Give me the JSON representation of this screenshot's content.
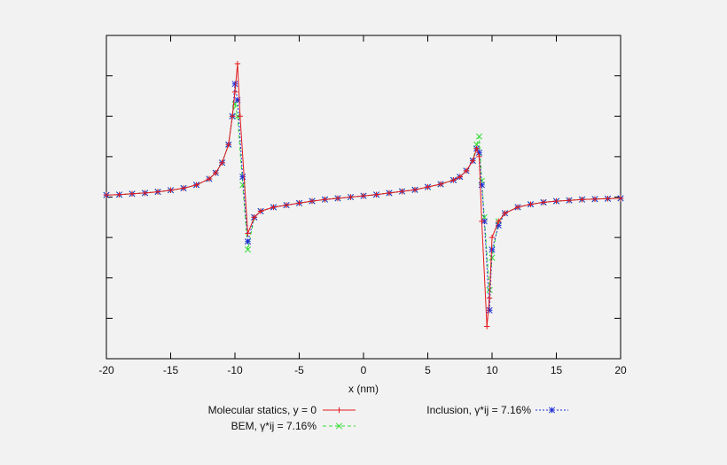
{
  "chart_data": {
    "type": "line",
    "xlabel": "x (nm)",
    "ylabel": "",
    "title": "",
    "xlim": [
      -20,
      20
    ],
    "ylim": [
      -4,
      4
    ],
    "xticks": [
      "-20",
      "-15",
      "-10",
      "-5",
      "0",
      "5",
      "10",
      "15",
      "20"
    ],
    "grid": false,
    "legend": {
      "placement": "bottom",
      "entries": [
        {
          "label": "Molecular statics, y = 0",
          "color": "#e41a1c",
          "marker": "plus",
          "dash": "solid"
        },
        {
          "label": "Inclusion, γ*ij = 7.16%",
          "color": "#1f2fd6",
          "marker": "asterisk",
          "dash": "dotted"
        },
        {
          "label": "BEM, γ*ij = 7.16%",
          "color": "#33dd33",
          "marker": "cross",
          "dash": "dashed"
        }
      ]
    },
    "series": [
      {
        "name": "Molecular statics, y = 0",
        "color": "#e41a1c",
        "x": [
          -20,
          -19,
          -18,
          -17,
          -16,
          -15,
          -14,
          -13,
          -12,
          -11.5,
          -11,
          -10.5,
          -10.2,
          -10,
          -9.8,
          -9.6,
          -9,
          -8.5,
          -8,
          -7,
          -6,
          -5,
          -4,
          -3,
          -2,
          -1,
          0,
          1,
          2,
          3,
          4,
          5,
          6,
          7,
          7.5,
          8,
          8.5,
          8.8,
          9,
          9.2,
          9.6,
          9.8,
          10,
          10.5,
          11,
          12,
          13,
          14,
          15,
          16,
          17,
          18,
          19,
          20
        ],
        "y": [
          0.05,
          0.06,
          0.08,
          0.1,
          0.13,
          0.17,
          0.22,
          0.3,
          0.45,
          0.6,
          0.85,
          1.3,
          2.0,
          2.6,
          3.3,
          2.0,
          -0.9,
          -0.5,
          -0.35,
          -0.25,
          -0.2,
          -0.15,
          -0.1,
          -0.06,
          -0.03,
          0,
          0.03,
          0.06,
          0.1,
          0.14,
          0.18,
          0.25,
          0.32,
          0.42,
          0.5,
          0.65,
          0.9,
          1.2,
          1.0,
          -0.6,
          -3.2,
          -2.5,
          -1.0,
          -0.6,
          -0.4,
          -0.25,
          -0.18,
          -0.13,
          -0.1,
          -0.08,
          -0.06,
          -0.05,
          -0.04,
          -0.03
        ]
      },
      {
        "name": "Inclusion, γ*ij = 7.16%",
        "color": "#1f2fd6",
        "x": [
          -20,
          -19,
          -18,
          -17,
          -16,
          -15,
          -14,
          -13,
          -12,
          -11.5,
          -11,
          -10.5,
          -10.2,
          -10,
          -9.8,
          -9.4,
          -9,
          -8.5,
          -8,
          -7,
          -6,
          -5,
          -4,
          -3,
          -2,
          -1,
          0,
          1,
          2,
          3,
          4,
          5,
          6,
          7,
          7.5,
          8,
          8.5,
          8.8,
          9,
          9.2,
          9.4,
          9.8,
          10,
          10.5,
          11,
          12,
          13,
          14,
          15,
          16,
          17,
          18,
          19,
          20
        ],
        "y": [
          0.05,
          0.06,
          0.08,
          0.1,
          0.13,
          0.17,
          0.22,
          0.3,
          0.45,
          0.6,
          0.85,
          1.3,
          2.0,
          2.8,
          2.4,
          0.5,
          -1.1,
          -0.5,
          -0.35,
          -0.25,
          -0.2,
          -0.15,
          -0.1,
          -0.06,
          -0.03,
          0,
          0.03,
          0.06,
          0.1,
          0.14,
          0.18,
          0.25,
          0.32,
          0.42,
          0.5,
          0.65,
          0.9,
          1.2,
          1.1,
          0.3,
          -0.6,
          -2.8,
          -1.3,
          -0.7,
          -0.4,
          -0.25,
          -0.18,
          -0.13,
          -0.1,
          -0.08,
          -0.06,
          -0.05,
          -0.04,
          -0.03
        ]
      },
      {
        "name": "BEM, γ*ij = 7.16%",
        "color": "#33dd33",
        "x": [
          -20,
          -19,
          -18,
          -17,
          -16,
          -15,
          -14,
          -13,
          -12,
          -11.5,
          -11,
          -10.5,
          -10.2,
          -10,
          -9.8,
          -9.4,
          -9,
          -8.5,
          -8,
          -7,
          -6,
          -5,
          -4,
          -3,
          -2,
          -1,
          0,
          1,
          2,
          3,
          4,
          5,
          6,
          7,
          7.5,
          8,
          8.5,
          8.8,
          9,
          9.2,
          9.4,
          9.8,
          10,
          10.5,
          11,
          12,
          13,
          14,
          15,
          16,
          17,
          18,
          19,
          20
        ],
        "y": [
          0.05,
          0.06,
          0.08,
          0.1,
          0.13,
          0.17,
          0.22,
          0.3,
          0.45,
          0.6,
          0.85,
          1.3,
          2.0,
          2.3,
          2.0,
          0.3,
          -1.3,
          -0.5,
          -0.35,
          -0.25,
          -0.2,
          -0.15,
          -0.1,
          -0.06,
          -0.03,
          0,
          0.03,
          0.06,
          0.1,
          0.14,
          0.18,
          0.25,
          0.32,
          0.42,
          0.5,
          0.65,
          0.9,
          1.3,
          1.5,
          0.4,
          -0.5,
          -2.3,
          -1.5,
          -0.6,
          -0.4,
          -0.25,
          -0.18,
          -0.13,
          -0.1,
          -0.08,
          -0.06,
          -0.05,
          -0.04,
          -0.03
        ]
      }
    ]
  }
}
